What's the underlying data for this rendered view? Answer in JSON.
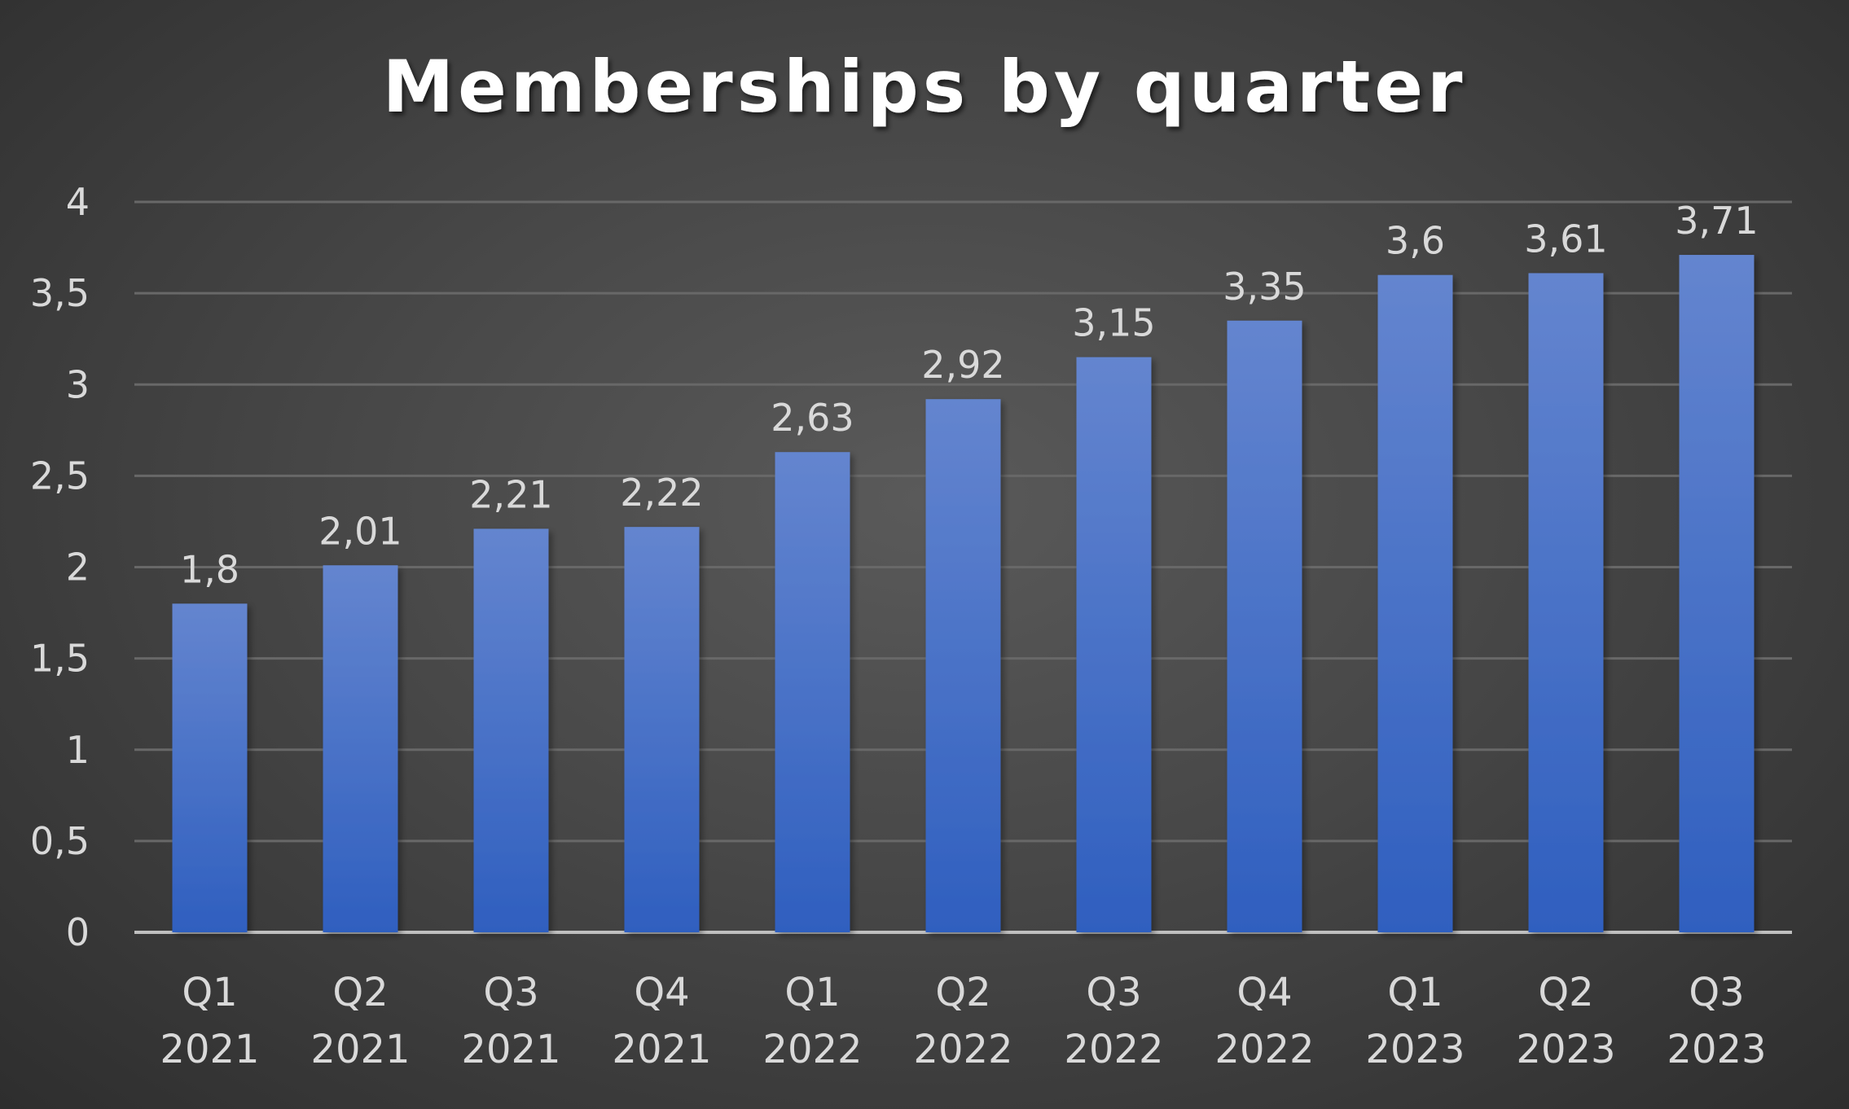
{
  "chart_data": {
    "type": "bar",
    "title": "Memberships by quarter",
    "xlabel": "",
    "ylabel": "",
    "categories": [
      [
        "Q1",
        "2021"
      ],
      [
        "Q2",
        "2021"
      ],
      [
        "Q3",
        "2021"
      ],
      [
        "Q4",
        "2021"
      ],
      [
        "Q1",
        "2022"
      ],
      [
        "Q2",
        "2022"
      ],
      [
        "Q3",
        "2022"
      ],
      [
        "Q4",
        "2022"
      ],
      [
        "Q1",
        "2023"
      ],
      [
        "Q2",
        "2023"
      ],
      [
        "Q3",
        "2023"
      ]
    ],
    "values": [
      1.8,
      2.01,
      2.21,
      2.22,
      2.63,
      2.92,
      3.15,
      3.35,
      3.6,
      3.61,
      3.71
    ],
    "value_labels": [
      "1,8",
      "2,01",
      "2,21",
      "2,22",
      "2,63",
      "2,92",
      "3,15",
      "3,35",
      "3,6",
      "3,61",
      "3,71"
    ],
    "ylim": [
      0,
      4
    ],
    "yticks": [
      0,
      0.5,
      1,
      1.5,
      2,
      2.5,
      3,
      3.5,
      4
    ],
    "ytick_labels": [
      "0",
      "0,5",
      "1",
      "1,5",
      "2",
      "2,5",
      "3",
      "3,5",
      "4"
    ],
    "grid": true,
    "legend": "none",
    "colors": {
      "bar_top": "#6485cf",
      "bar_bottom": "#2f5fbf",
      "gridline": "#686868",
      "axis": "#bfbfbf",
      "text": "#d9d9d9",
      "title": "#ffffff"
    }
  }
}
